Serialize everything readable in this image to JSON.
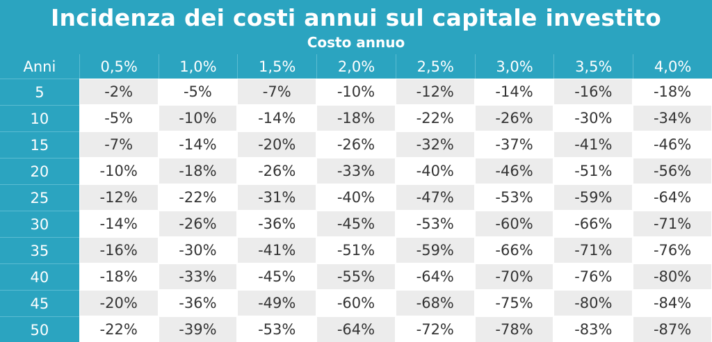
{
  "header": {
    "title": "Incidenza dei costi annui sul capitale investito",
    "subtitle": "Costo annuo"
  },
  "table": {
    "columns": [
      "Anni",
      "0,5%",
      "1,0%",
      "1,5%",
      "2,0%",
      "2,5%",
      "3,0%",
      "3,5%",
      "4,0%"
    ],
    "rows": [
      [
        "5",
        "-2%",
        "-5%",
        "-7%",
        "-10%",
        "-12%",
        "-14%",
        "-16%",
        "-18%"
      ],
      [
        "10",
        "-5%",
        "-10%",
        "-14%",
        "-18%",
        "-22%",
        "-26%",
        "-30%",
        "-34%"
      ],
      [
        "15",
        "-7%",
        "-14%",
        "-20%",
        "-26%",
        "-32%",
        "-37%",
        "-41%",
        "-46%"
      ],
      [
        "20",
        "-10%",
        "-18%",
        "-26%",
        "-33%",
        "-40%",
        "-46%",
        "-51%",
        "-56%"
      ],
      [
        "25",
        "-12%",
        "-22%",
        "-31%",
        "-40%",
        "-47%",
        "-53%",
        "-59%",
        "-64%"
      ],
      [
        "30",
        "-14%",
        "-26%",
        "-36%",
        "-45%",
        "-53%",
        "-60%",
        "-66%",
        "-71%"
      ],
      [
        "35",
        "-16%",
        "-30%",
        "-41%",
        "-51%",
        "-59%",
        "-66%",
        "-71%",
        "-76%"
      ],
      [
        "40",
        "-18%",
        "-33%",
        "-45%",
        "-55%",
        "-64%",
        "-70%",
        "-76%",
        "-80%"
      ],
      [
        "45",
        "-20%",
        "-36%",
        "-49%",
        "-60%",
        "-68%",
        "-75%",
        "-80%",
        "-84%"
      ],
      [
        "50",
        "-22%",
        "-39%",
        "-53%",
        "-64%",
        "-72%",
        "-78%",
        "-83%",
        "-87%"
      ]
    ]
  }
}
